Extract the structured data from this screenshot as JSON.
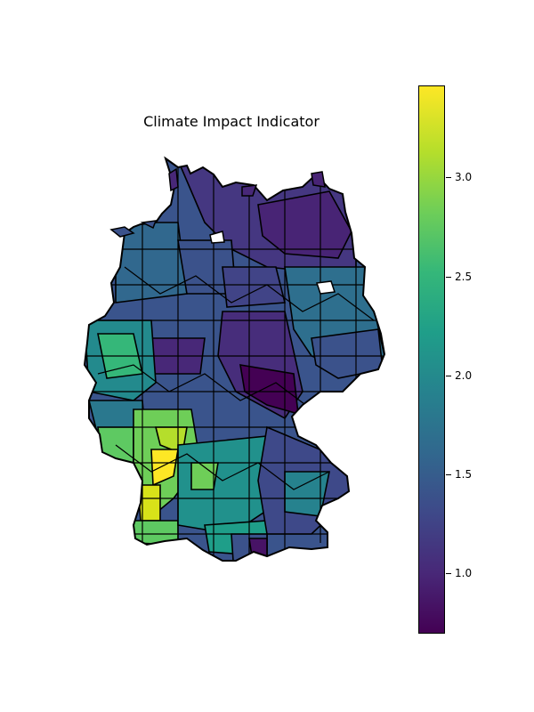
{
  "title": "Climate Impact Indicator",
  "colorbar": {
    "min": 0.68,
    "max": 3.45,
    "colormap": "viridis",
    "ticks": [
      "1.0",
      "1.5",
      "2.0",
      "2.5",
      "3.0"
    ]
  },
  "legend_ticks": [
    1.0,
    1.5,
    2.0,
    2.5,
    3.0
  ]
}
